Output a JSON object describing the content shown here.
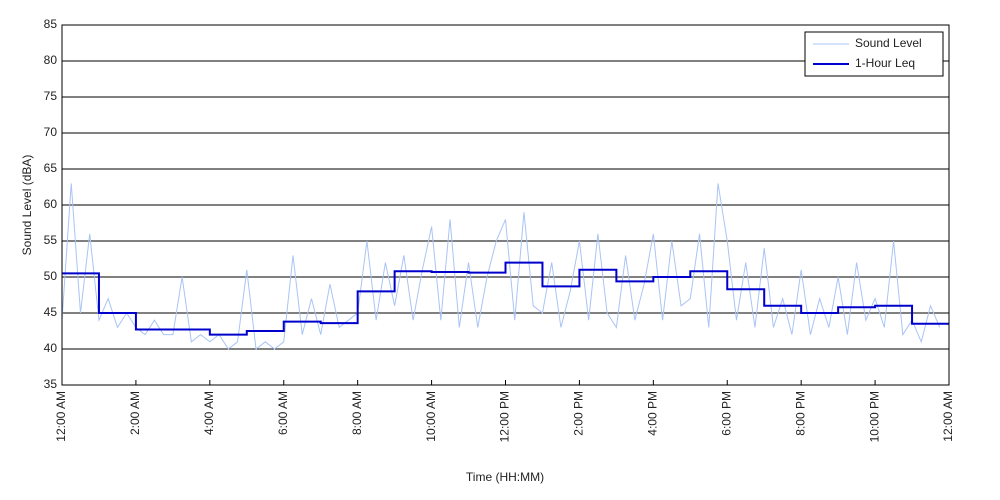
{
  "chart_data": {
    "type": "line",
    "xlabel": "Time (HH:MM)",
    "ylabel": "Sound Level (dBA)",
    "xlim": [
      0,
      24
    ],
    "ylim": [
      35,
      85
    ],
    "xticks": [
      {
        "value": 0,
        "label": "12:00 AM"
      },
      {
        "value": 2,
        "label": "2:00 AM"
      },
      {
        "value": 4,
        "label": "4:00 AM"
      },
      {
        "value": 6,
        "label": "6:00 AM"
      },
      {
        "value": 8,
        "label": "8:00 AM"
      },
      {
        "value": 10,
        "label": "10:00 AM"
      },
      {
        "value": 12,
        "label": "12:00 PM"
      },
      {
        "value": 14,
        "label": "2:00 PM"
      },
      {
        "value": 16,
        "label": "4:00 PM"
      },
      {
        "value": 18,
        "label": "6:00 PM"
      },
      {
        "value": 20,
        "label": "8:00 PM"
      },
      {
        "value": 22,
        "label": "10:00 PM"
      },
      {
        "value": 24,
        "label": "12:00 AM"
      }
    ],
    "yticks": [
      35,
      40,
      45,
      50,
      55,
      60,
      65,
      70,
      75,
      80,
      85
    ],
    "grid": true,
    "legend": "upper right",
    "series": [
      {
        "name": "Sound Level",
        "color": "#a9c4f5",
        "width": 1,
        "x": [
          0,
          0.25,
          0.5,
          0.75,
          1,
          1.25,
          1.5,
          1.75,
          2,
          2.25,
          2.5,
          2.75,
          3,
          3.25,
          3.5,
          3.75,
          4,
          4.25,
          4.5,
          4.75,
          5,
          5.25,
          5.5,
          5.75,
          6,
          6.25,
          6.5,
          6.75,
          7,
          7.25,
          7.5,
          7.75,
          8,
          8.25,
          8.5,
          8.75,
          9,
          9.25,
          9.5,
          9.75,
          10,
          10.25,
          10.5,
          10.75,
          11,
          11.25,
          11.5,
          11.75,
          12,
          12.25,
          12.5,
          12.75,
          13,
          13.25,
          13.5,
          13.75,
          14,
          14.25,
          14.5,
          14.75,
          15,
          15.25,
          15.5,
          15.75,
          16,
          16.25,
          16.5,
          16.75,
          17,
          17.25,
          17.5,
          17.75,
          18,
          18.25,
          18.5,
          18.75,
          19,
          19.25,
          19.5,
          19.75,
          20,
          20.25,
          20.5,
          20.75,
          21,
          21.25,
          21.5,
          21.75,
          22,
          22.25,
          22.5,
          22.75,
          23,
          23.25,
          23.5,
          23.75
        ],
        "values": [
          44,
          63,
          45,
          56,
          44,
          47,
          43,
          45,
          43,
          42,
          44,
          42,
          42,
          50,
          41,
          42,
          41,
          42,
          40,
          41,
          51,
          40,
          41,
          40,
          41,
          53,
          42,
          47,
          42,
          49,
          43,
          44,
          45,
          55,
          44,
          52,
          46,
          53,
          44,
          51,
          57,
          44,
          58,
          43,
          52,
          43,
          50,
          55,
          58,
          44,
          59,
          46,
          45,
          52,
          43,
          48,
          55,
          44,
          56,
          45,
          43,
          53,
          44,
          49,
          56,
          44,
          55,
          46,
          47,
          56,
          43,
          63,
          55,
          44,
          52,
          43,
          54,
          43,
          47,
          42,
          51,
          42,
          47,
          43,
          50,
          42,
          52,
          44,
          47,
          43,
          55,
          42,
          44,
          41,
          46,
          43
        ]
      },
      {
        "name": "1-Hour Leq",
        "color": "#0000cc",
        "width": 2,
        "step": "post",
        "x": [
          0,
          1,
          2,
          3,
          4,
          5,
          6,
          7,
          8,
          9,
          10,
          11,
          12,
          13,
          14,
          15,
          16,
          17,
          18,
          19,
          20,
          21,
          22,
          23
        ],
        "values": [
          50.5,
          45,
          42.7,
          42.7,
          42,
          42.5,
          43.8,
          43.6,
          48,
          50.8,
          50.7,
          50.6,
          52,
          48.7,
          51,
          49.4,
          50,
          50.8,
          48.3,
          46,
          45,
          45.8,
          46,
          43.5
        ]
      }
    ]
  }
}
